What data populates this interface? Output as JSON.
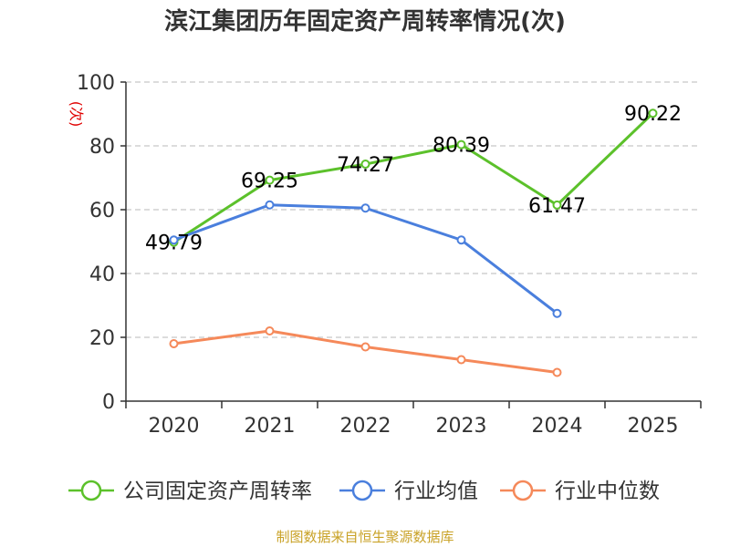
{
  "chart_data": {
    "type": "line",
    "title": "滨江集团历年固定资产周转率情况(次)",
    "ylabel": "(次)",
    "xlabel": "",
    "categories": [
      "2020",
      "2021",
      "2022",
      "2023",
      "2024",
      "2025"
    ],
    "ylim": [
      0,
      100
    ],
    "yticks": [
      0,
      20,
      40,
      60,
      80,
      100
    ],
    "grid": true,
    "legend_position": "bottom",
    "series": [
      {
        "name": "公司固定资产周转率",
        "color": "#5cc12b",
        "values": [
          49.79,
          69.25,
          74.27,
          80.39,
          61.47,
          90.22
        ],
        "show_labels": true,
        "labels": [
          "49.79",
          "69.25",
          "74.27",
          "80.39",
          "61.47",
          "90.22"
        ]
      },
      {
        "name": "行业均值",
        "color": "#4a7fdd",
        "values": [
          50.5,
          61.5,
          60.5,
          50.5,
          27.5,
          null
        ],
        "show_labels": false
      },
      {
        "name": "行业中位数",
        "color": "#f5895a",
        "values": [
          18,
          22,
          17,
          13,
          9,
          null
        ],
        "show_labels": false
      }
    ],
    "source": "制图数据来自恒生聚源数据库"
  }
}
